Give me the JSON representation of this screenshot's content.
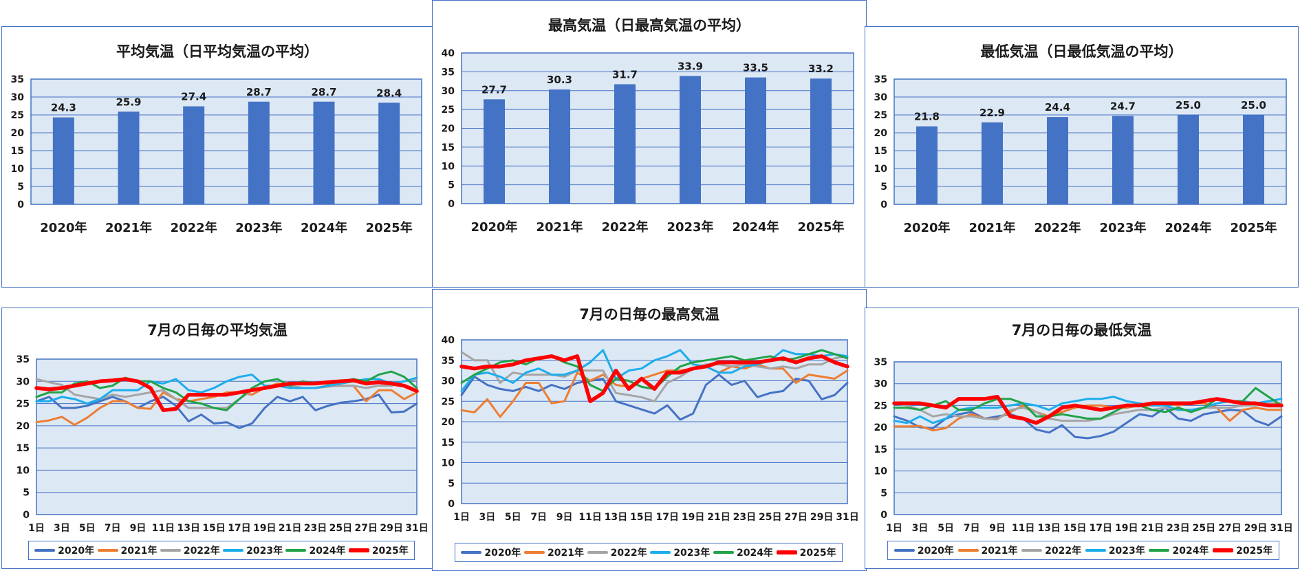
{
  "chart_data": [
    {
      "id": "avg-bar",
      "type": "bar",
      "title": "平均気温（日平均気温の平均）",
      "categories": [
        "2020年",
        "2021年",
        "2022年",
        "2023年",
        "2024年",
        "2025年"
      ],
      "values": [
        24.3,
        25.9,
        27.4,
        28.7,
        28.7,
        28.4
      ],
      "ylim": [
        0,
        35
      ],
      "yticks": [
        0,
        5,
        10,
        15,
        20,
        25,
        30,
        35
      ],
      "bar_color": "#4472c4",
      "grid": true
    },
    {
      "id": "max-bar",
      "type": "bar",
      "title": "最高気温（日最高気温の平均）",
      "categories": [
        "2020年",
        "2021年",
        "2022年",
        "2023年",
        "2024年",
        "2025年"
      ],
      "values": [
        27.7,
        30.3,
        31.7,
        33.9,
        33.5,
        33.2
      ],
      "ylim": [
        0,
        40
      ],
      "yticks": [
        0,
        5,
        10,
        15,
        20,
        25,
        30,
        35,
        40
      ],
      "bar_color": "#4472c4",
      "grid": true
    },
    {
      "id": "min-bar",
      "type": "bar",
      "title": "最低気温（日最低気温の平均）",
      "categories": [
        "2020年",
        "2021年",
        "2022年",
        "2023年",
        "2024年",
        "2025年"
      ],
      "values": [
        21.8,
        22.9,
        24.4,
        24.7,
        25.0,
        25.0
      ],
      "ylim": [
        0,
        35
      ],
      "yticks": [
        0,
        5,
        10,
        15,
        20,
        25,
        30,
        35
      ],
      "bar_color": "#4472c4",
      "grid": true
    },
    {
      "id": "avg-line",
      "type": "line",
      "title": "7月の日毎の平均気温",
      "x": [
        1,
        2,
        3,
        4,
        5,
        6,
        7,
        8,
        9,
        10,
        11,
        12,
        13,
        14,
        15,
        16,
        17,
        18,
        19,
        20,
        21,
        22,
        23,
        24,
        25,
        26,
        27,
        28,
        29,
        30,
        31
      ],
      "xtick_labels": [
        "1日",
        "3日",
        "5日",
        "7日",
        "9日",
        "11日",
        "13日",
        "15日",
        "17日",
        "19日",
        "21日",
        "23日",
        "25日",
        "27日",
        "29日",
        "31日"
      ],
      "ylim": [
        0,
        35
      ],
      "yticks": [
        0,
        5,
        10,
        15,
        20,
        25,
        30,
        35
      ],
      "legend": "bottom",
      "series": [
        {
          "name": "2020年",
          "color": "#4472c4",
          "values": [
            25.5,
            26.5,
            24.0,
            24.0,
            24.5,
            25.5,
            26.5,
            25.5,
            24.0,
            25.5,
            26.5,
            24.5,
            21.0,
            22.5,
            20.5,
            20.8,
            19.5,
            20.5,
            24.0,
            26.5,
            25.5,
            26.5,
            23.5,
            24.5,
            25.2,
            25.5,
            26.0,
            27.0,
            23.0,
            23.2,
            25.0
          ]
        },
        {
          "name": "2021年",
          "color": "#ed7d31",
          "values": [
            20.8,
            21.2,
            22.0,
            20.2,
            21.8,
            24.0,
            25.5,
            25.5,
            24.0,
            23.8,
            27.5,
            26.0,
            25.5,
            26.0,
            26.5,
            27.5,
            27.5,
            27.0,
            28.5,
            29.5,
            29.0,
            28.5,
            28.5,
            29.0,
            29.0,
            29.0,
            25.5,
            28.0,
            28.0,
            26.0,
            27.5
          ]
        },
        {
          "name": "2022年",
          "color": "#a5a5a5",
          "values": [
            30.5,
            29.8,
            29.2,
            27.0,
            26.5,
            26.0,
            27.0,
            26.5,
            27.0,
            27.5,
            28.0,
            26.0,
            24.0,
            24.0,
            24.0,
            24.0,
            26.0,
            28.0,
            28.5,
            29.0,
            29.0,
            28.5,
            28.5,
            28.8,
            29.0,
            29.0,
            28.5,
            29.0,
            29.0,
            30.0,
            30.5
          ]
        },
        {
          "name": "2023年",
          "color": "#1cadeb",
          "values": [
            25.5,
            25.5,
            26.5,
            26.0,
            25.0,
            26.0,
            28.0,
            28.0,
            28.0,
            30.0,
            29.5,
            30.5,
            28.0,
            27.5,
            28.5,
            30.0,
            31.0,
            31.5,
            29.0,
            29.0,
            28.5,
            28.5,
            28.5,
            29.0,
            29.5,
            30.0,
            30.5,
            30.5,
            29.5,
            30.0,
            30.8
          ]
        },
        {
          "name": "2024年",
          "color": "#21a347",
          "values": [
            26.5,
            27.5,
            27.5,
            29.5,
            30.0,
            28.5,
            29.0,
            30.8,
            30.0,
            30.0,
            28.5,
            27.5,
            25.5,
            25.0,
            24.0,
            23.5,
            26.0,
            28.5,
            30.0,
            30.5,
            29.0,
            30.0,
            29.5,
            29.5,
            30.0,
            30.5,
            30.0,
            31.5,
            32.2,
            31.0,
            28.5
          ]
        },
        {
          "name": "2025年",
          "color": "#ff0000",
          "thick": true,
          "values": [
            28.5,
            28.2,
            28.5,
            29.0,
            29.5,
            30.0,
            30.2,
            30.5,
            30.0,
            28.5,
            23.5,
            23.8,
            27.0,
            27.0,
            27.0,
            27.0,
            27.5,
            28.0,
            28.5,
            29.0,
            29.5,
            29.5,
            29.5,
            29.8,
            30.0,
            30.2,
            29.5,
            29.8,
            29.5,
            29.0,
            27.8
          ]
        }
      ]
    },
    {
      "id": "max-line",
      "type": "line",
      "title": "7月の日毎の最高気温",
      "x": [
        1,
        2,
        3,
        4,
        5,
        6,
        7,
        8,
        9,
        10,
        11,
        12,
        13,
        14,
        15,
        16,
        17,
        18,
        19,
        20,
        21,
        22,
        23,
        24,
        25,
        26,
        27,
        28,
        29,
        30,
        31
      ],
      "xtick_labels": [
        "1日",
        "3日",
        "5日",
        "7日",
        "9日",
        "11日",
        "13日",
        "15日",
        "17日",
        "19日",
        "21日",
        "23日",
        "25日",
        "27日",
        "29日",
        "31日"
      ],
      "ylim": [
        0,
        40
      ],
      "yticks": [
        0,
        5,
        10,
        15,
        20,
        25,
        30,
        35,
        40
      ],
      "legend": "bottom",
      "series": [
        {
          "name": "2020年",
          "color": "#4472c4",
          "values": [
            26.5,
            31.0,
            29.0,
            28.0,
            27.5,
            28.5,
            27.5,
            29.0,
            28.0,
            29.5,
            30.0,
            30.5,
            25.0,
            24.0,
            23.0,
            22.0,
            24.0,
            20.5,
            22.0,
            29.0,
            31.5,
            29.0,
            30.0,
            26.0,
            27.0,
            27.5,
            30.5,
            30.0,
            25.5,
            26.5,
            29.5
          ]
        },
        {
          "name": "2021年",
          "color": "#ed7d31",
          "values": [
            22.8,
            22.3,
            25.5,
            21.2,
            25.0,
            29.5,
            29.5,
            24.5,
            25.0,
            32.0,
            30.0,
            31.5,
            29.0,
            28.5,
            30.5,
            31.5,
            32.5,
            32.5,
            33.0,
            33.5,
            32.0,
            33.5,
            33.0,
            34.0,
            33.0,
            33.0,
            29.5,
            31.5,
            31.0,
            30.5,
            32.5
          ]
        },
        {
          "name": "2022年",
          "color": "#a5a5a5",
          "values": [
            37.0,
            35.0,
            35.0,
            29.5,
            32.0,
            31.5,
            31.5,
            31.5,
            31.0,
            32.5,
            32.5,
            32.5,
            27.0,
            26.5,
            26.0,
            25.0,
            29.5,
            31.0,
            33.0,
            34.0,
            34.0,
            33.5,
            34.0,
            33.5,
            33.0,
            33.5,
            33.0,
            34.0,
            34.0,
            35.5,
            36.0
          ]
        },
        {
          "name": "2023年",
          "color": "#1cadeb",
          "values": [
            27.5,
            31.5,
            32.0,
            31.0,
            29.5,
            32.0,
            33.0,
            31.5,
            31.5,
            32.5,
            34.5,
            37.5,
            30.5,
            32.5,
            33.0,
            35.0,
            36.0,
            37.5,
            34.0,
            33.5,
            32.0,
            32.0,
            33.5,
            34.0,
            35.0,
            37.5,
            36.5,
            36.5,
            36.0,
            36.5,
            36.0
          ]
        },
        {
          "name": "2024年",
          "color": "#21a347",
          "values": [
            29.5,
            31.5,
            33.0,
            34.5,
            35.0,
            34.0,
            35.5,
            36.0,
            34.5,
            33.5,
            29.0,
            27.5,
            30.5,
            30.0,
            28.5,
            28.0,
            31.0,
            33.5,
            34.5,
            35.0,
            35.5,
            36.0,
            35.0,
            35.5,
            36.0,
            35.0,
            35.5,
            36.5,
            37.5,
            36.5,
            35.5
          ]
        },
        {
          "name": "2025年",
          "color": "#ff0000",
          "thick": true,
          "values": [
            33.5,
            33.0,
            33.5,
            33.5,
            34.0,
            35.0,
            35.5,
            36.0,
            35.0,
            36.0,
            25.0,
            27.0,
            32.5,
            28.0,
            30.5,
            28.0,
            32.0,
            32.0,
            33.0,
            33.5,
            34.5,
            34.5,
            34.5,
            34.5,
            35.0,
            35.5,
            34.5,
            35.5,
            36.0,
            34.5,
            33.5
          ]
        }
      ]
    },
    {
      "id": "min-line",
      "type": "line",
      "title": "7月の日毎の最低気温",
      "x": [
        1,
        2,
        3,
        4,
        5,
        6,
        7,
        8,
        9,
        10,
        11,
        12,
        13,
        14,
        15,
        16,
        17,
        18,
        19,
        20,
        21,
        22,
        23,
        24,
        25,
        26,
        27,
        28,
        29,
        30,
        31
      ],
      "xtick_labels": [
        "1日",
        "3日",
        "5日",
        "7日",
        "9日",
        "11日",
        "13日",
        "15日",
        "17日",
        "19日",
        "21日",
        "23日",
        "25日",
        "27日",
        "29日",
        "31日"
      ],
      "ylim": [
        0,
        35
      ],
      "yticks": [
        0,
        5,
        10,
        15,
        20,
        25,
        30,
        35
      ],
      "legend": "bottom",
      "series": [
        {
          "name": "2020年",
          "color": "#4472c4",
          "values": [
            22.5,
            21.5,
            20.0,
            19.8,
            22.0,
            23.0,
            23.5,
            22.0,
            22.5,
            23.0,
            22.0,
            19.5,
            18.8,
            20.5,
            17.8,
            17.5,
            18.0,
            19.0,
            21.0,
            23.0,
            22.5,
            24.5,
            22.0,
            21.5,
            23.0,
            23.5,
            24.0,
            23.8,
            21.5,
            20.5,
            22.5
          ]
        },
        {
          "name": "2021年",
          "color": "#ed7d31",
          "values": [
            20.2,
            20.2,
            20.3,
            19.3,
            19.8,
            22.0,
            23.0,
            22.0,
            22.0,
            23.5,
            25.0,
            23.5,
            22.5,
            23.5,
            24.5,
            25.0,
            25.0,
            24.5,
            24.5,
            25.0,
            25.0,
            25.5,
            25.0,
            25.5,
            25.5,
            24.5,
            21.5,
            24.0,
            24.5,
            24.0,
            24.0
          ]
        },
        {
          "name": "2022年",
          "color": "#a5a5a5",
          "values": [
            25.5,
            25.0,
            24.0,
            22.5,
            23.0,
            22.5,
            22.5,
            22.0,
            21.8,
            24.0,
            24.5,
            23.5,
            22.0,
            21.5,
            21.5,
            21.5,
            22.0,
            23.0,
            23.5,
            24.0,
            24.0,
            24.5,
            24.0,
            24.0,
            24.5,
            24.5,
            24.5,
            25.0,
            25.0,
            25.5,
            25.5
          ]
        },
        {
          "name": "2023年",
          "color": "#1cadeb",
          "values": [
            21.5,
            21.0,
            22.5,
            21.0,
            22.0,
            24.0,
            24.5,
            24.5,
            24.5,
            25.0,
            25.5,
            25.0,
            24.0,
            25.5,
            26.0,
            26.5,
            26.5,
            27.0,
            26.0,
            25.5,
            25.0,
            25.0,
            24.0,
            24.0,
            24.5,
            25.5,
            26.0,
            26.0,
            25.5,
            26.0,
            26.5
          ]
        },
        {
          "name": "2024年",
          "color": "#21a347",
          "values": [
            24.5,
            24.5,
            24.0,
            25.0,
            26.0,
            24.0,
            24.0,
            25.5,
            26.5,
            26.5,
            25.5,
            22.5,
            22.5,
            23.0,
            22.5,
            22.0,
            22.0,
            23.5,
            25.0,
            25.0,
            24.0,
            23.5,
            24.5,
            23.5,
            24.5,
            26.5,
            26.0,
            26.0,
            29.0,
            27.0,
            25.0
          ]
        },
        {
          "name": "2025年",
          "color": "#ff0000",
          "thick": true,
          "values": [
            25.5,
            25.5,
            25.5,
            25.0,
            24.5,
            26.5,
            26.5,
            26.5,
            27.0,
            22.5,
            22.0,
            21.0,
            22.5,
            24.5,
            25.0,
            24.5,
            24.0,
            24.5,
            25.0,
            25.0,
            25.5,
            25.5,
            25.5,
            25.5,
            26.0,
            26.5,
            26.0,
            25.5,
            25.5,
            25.0,
            25.0
          ]
        }
      ]
    }
  ]
}
